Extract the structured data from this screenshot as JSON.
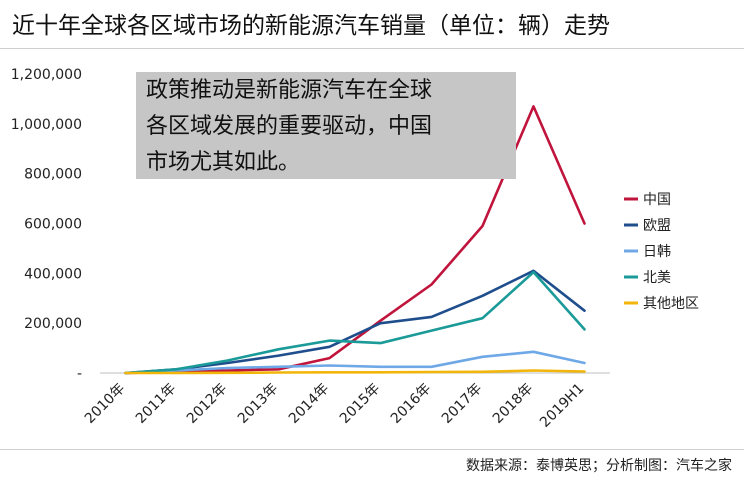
{
  "title": "近十年全球各区域市场的新能源汽车销量（单位：辆）走势",
  "source": "数据来源：泰博英思；分析制图：汽车之家",
  "callout": {
    "lines": [
      "政策推动是新能源汽车在全球",
      "各区域发展的重要驱动，中国",
      "市场尤其如此。"
    ]
  },
  "chart_data": {
    "type": "line",
    "categories": [
      "2010年",
      "2011年",
      "2012年",
      "2013年",
      "2014年",
      "2015年",
      "2016年",
      "2017年",
      "2018年",
      "2019H1"
    ],
    "ylim": [
      0,
      1200000
    ],
    "yticks": [
      0,
      200000,
      400000,
      600000,
      800000,
      1000000,
      1200000
    ],
    "ytick_labels": [
      "-",
      "200,000",
      "400,000",
      "600,000",
      "800,000",
      "1,000,000",
      "1,200,000"
    ],
    "grid": false,
    "legend_position": "right",
    "series": [
      {
        "name": "中国",
        "color": "#c0143c",
        "values": [
          0,
          5000,
          10000,
          15000,
          60000,
          210000,
          355000,
          590000,
          1070000,
          600000
        ]
      },
      {
        "name": "欧盟",
        "color": "#1f4e8c",
        "values": [
          0,
          15000,
          40000,
          70000,
          105000,
          200000,
          225000,
          310000,
          410000,
          250000
        ]
      },
      {
        "name": "日韩",
        "color": "#6fa8e6",
        "values": [
          0,
          10000,
          20000,
          25000,
          30000,
          25000,
          25000,
          65000,
          85000,
          40000
        ]
      },
      {
        "name": "北美",
        "color": "#1a9a98",
        "values": [
          0,
          15000,
          50000,
          95000,
          130000,
          120000,
          170000,
          220000,
          405000,
          175000
        ]
      },
      {
        "name": "其他地区",
        "color": "#f2b60a",
        "values": [
          0,
          0,
          1000,
          2000,
          3000,
          3000,
          4000,
          5000,
          10000,
          6000
        ]
      }
    ]
  }
}
